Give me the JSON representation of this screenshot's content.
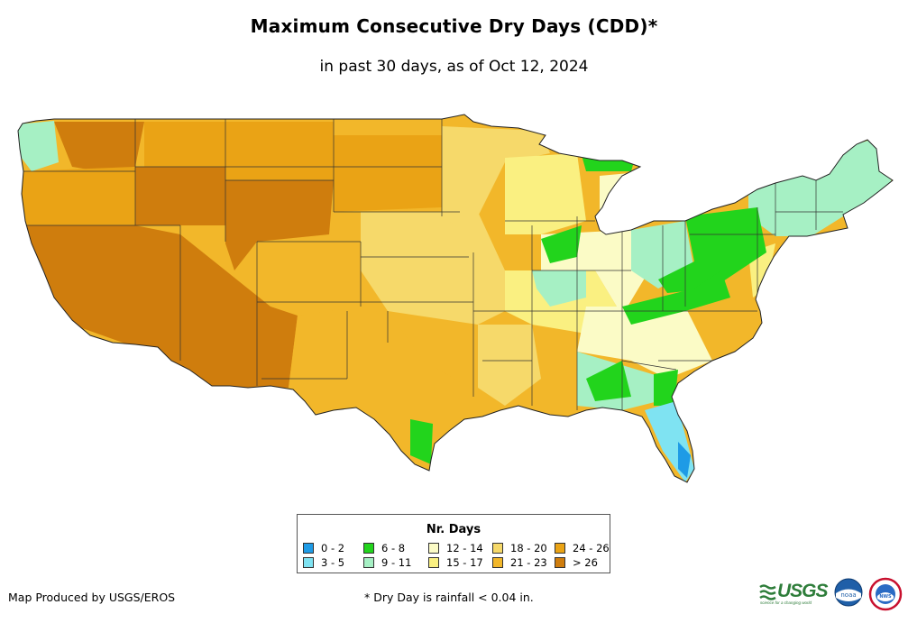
{
  "title": "Maximum Consecutive Dry Days (CDD)*",
  "subtitle": "in past 30 days, as of Oct 12, 2024",
  "legend": {
    "title": "Nr. Days",
    "items": [
      {
        "label": "0 - 2",
        "color": "#1e9be6"
      },
      {
        "label": "3 - 5",
        "color": "#7fe3f2"
      },
      {
        "label": "6 - 8",
        "color": "#22d41c"
      },
      {
        "label": "9 - 11",
        "color": "#a6f0c4"
      },
      {
        "label": "12 - 14",
        "color": "#fbfbc6"
      },
      {
        "label": "15 - 17",
        "color": "#faf081"
      },
      {
        "label": "18 - 20",
        "color": "#f6d96a"
      },
      {
        "label": "21 - 23",
        "color": "#f2b72a"
      },
      {
        "label": "24 - 26",
        "color": "#eaa315"
      },
      {
        "label": "> 26",
        "color": "#cf7d0d"
      }
    ]
  },
  "footer": {
    "producer": "Map Produced by USGS/EROS",
    "footnote": "* Dry Day is rainfall < 0.04 in."
  },
  "logos": {
    "usgs": "USGS",
    "usgs_tagline": "science for a changing world",
    "noaa": "noaa",
    "nws": "NWS"
  },
  "map": {
    "region": "Contiguous United States",
    "palette_note": "regions colored by legend class",
    "regions": [
      {
        "name": "Pacific Northwest coast",
        "class": "9 - 11"
      },
      {
        "name": "Great Basin / California",
        "class": "> 26"
      },
      {
        "name": "Rockies / Plains",
        "class": "21 - 23"
      },
      {
        "name": "Central Plains",
        "class": "18 - 20"
      },
      {
        "name": "Midwest",
        "class": "12 - 14"
      },
      {
        "name": "Ohio Valley / Appalachians",
        "class": "6 - 8"
      },
      {
        "name": "Northeast",
        "class": "9 - 11"
      },
      {
        "name": "Florida peninsula",
        "class": "3 - 5"
      },
      {
        "name": "South Florida",
        "class": "0 - 2"
      }
    ]
  }
}
